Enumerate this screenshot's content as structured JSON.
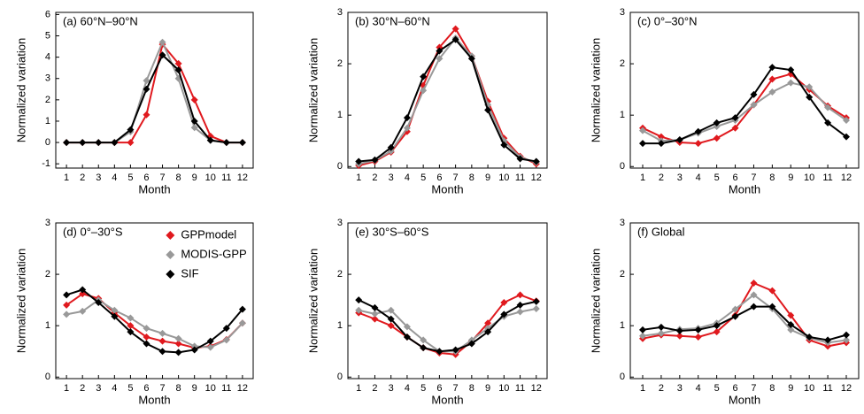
{
  "chart_data": [
    {
      "type": "line",
      "title": "(a) 60°N–90°N",
      "xlabel": "Month",
      "ylabel": "Normalized variation",
      "x": [
        1,
        2,
        3,
        4,
        5,
        6,
        7,
        8,
        9,
        10,
        11,
        12
      ],
      "xlim": [
        0.33,
        12.67
      ],
      "ylim": [
        -1.2,
        6.1
      ],
      "yticks": [
        -1,
        0,
        1,
        2,
        3,
        4,
        5,
        6
      ],
      "legend": false,
      "series": [
        {
          "name": "GPPmodel",
          "color": "#e0191e",
          "values": [
            0,
            0,
            0,
            0,
            0,
            1.3,
            4.6,
            3.7,
            2.0,
            0.3,
            0,
            0
          ]
        },
        {
          "name": "MODIS-GPP",
          "color": "#999999",
          "values": [
            0,
            0,
            0,
            0,
            0.5,
            2.9,
            4.7,
            3.0,
            0.7,
            0.1,
            0,
            0
          ]
        },
        {
          "name": "SIF",
          "color": "#000000",
          "values": [
            0,
            0,
            0,
            0,
            0.6,
            2.5,
            4.1,
            3.4,
            1.0,
            0.1,
            0,
            0
          ]
        }
      ]
    },
    {
      "type": "line",
      "title": "(b) 30°N–60°N",
      "xlabel": "Month",
      "ylabel": "Normalized variation",
      "x": [
        1,
        2,
        3,
        4,
        5,
        6,
        7,
        8,
        9,
        10,
        11,
        12
      ],
      "xlim": [
        0.33,
        12.67
      ],
      "ylim": [
        -0.03,
        3
      ],
      "yticks": [
        0,
        1,
        2,
        3
      ],
      "legend": false,
      "series": [
        {
          "name": "GPPmodel",
          "color": "#e0191e",
          "values": [
            0.02,
            0.1,
            0.28,
            0.68,
            1.58,
            2.32,
            2.68,
            2.15,
            1.27,
            0.55,
            0.2,
            0.05
          ]
        },
        {
          "name": "MODIS-GPP",
          "color": "#999999",
          "values": [
            0.05,
            0.12,
            0.3,
            0.75,
            1.48,
            2.1,
            2.5,
            2.15,
            1.2,
            0.5,
            0.18,
            0.08
          ]
        },
        {
          "name": "SIF",
          "color": "#000000",
          "values": [
            0.1,
            0.13,
            0.37,
            0.95,
            1.75,
            2.25,
            2.47,
            2.1,
            1.1,
            0.42,
            0.15,
            0.1
          ]
        }
      ]
    },
    {
      "type": "line",
      "title": "(c) 0°–30°N",
      "xlabel": "Month",
      "ylabel": "Normalized variation",
      "x": [
        1,
        2,
        3,
        4,
        5,
        6,
        7,
        8,
        9,
        10,
        11,
        12
      ],
      "xlim": [
        0.33,
        12.67
      ],
      "ylim": [
        -0.03,
        3
      ],
      "yticks": [
        0,
        1,
        2,
        3
      ],
      "legend": false,
      "series": [
        {
          "name": "GPPmodel",
          "color": "#e0191e",
          "values": [
            0.75,
            0.58,
            0.47,
            0.45,
            0.55,
            0.75,
            1.2,
            1.7,
            1.8,
            1.5,
            1.18,
            0.95
          ]
        },
        {
          "name": "MODIS-GPP",
          "color": "#999999",
          "values": [
            0.7,
            0.5,
            0.52,
            0.65,
            0.78,
            0.9,
            1.2,
            1.45,
            1.63,
            1.55,
            1.15,
            0.9
          ]
        },
        {
          "name": "SIF",
          "color": "#000000",
          "values": [
            0.45,
            0.45,
            0.52,
            0.68,
            0.85,
            0.95,
            1.4,
            1.93,
            1.88,
            1.35,
            0.85,
            0.58
          ]
        }
      ]
    },
    {
      "type": "line",
      "title": "(d) 0°–30°S",
      "xlabel": "Month",
      "ylabel": "Normalized variation",
      "x": [
        1,
        2,
        3,
        4,
        5,
        6,
        7,
        8,
        9,
        10,
        11,
        12
      ],
      "xlim": [
        0.33,
        12.67
      ],
      "ylim": [
        -0.03,
        3
      ],
      "yticks": [
        0,
        1,
        2,
        3
      ],
      "legend": "upper right",
      "series": [
        {
          "name": "GPPmodel",
          "color": "#e0191e",
          "values": [
            1.4,
            1.62,
            1.53,
            1.25,
            1.0,
            0.78,
            0.7,
            0.65,
            0.57,
            0.6,
            0.73,
            1.05
          ]
        },
        {
          "name": "MODIS-GPP",
          "color": "#999999",
          "values": [
            1.22,
            1.28,
            1.5,
            1.3,
            1.15,
            0.95,
            0.85,
            0.75,
            0.6,
            0.58,
            0.72,
            1.05
          ]
        },
        {
          "name": "SIF",
          "color": "#000000",
          "values": [
            1.6,
            1.7,
            1.45,
            1.18,
            0.88,
            0.65,
            0.5,
            0.48,
            0.53,
            0.7,
            0.95,
            1.32
          ]
        }
      ]
    },
    {
      "type": "line",
      "title": "(e) 30°S–60°S",
      "xlabel": "Month",
      "ylabel": "Normalized variation",
      "x": [
        1,
        2,
        3,
        4,
        5,
        6,
        7,
        8,
        9,
        10,
        11,
        12
      ],
      "xlim": [
        0.33,
        12.67
      ],
      "ylim": [
        -0.03,
        3
      ],
      "yticks": [
        0,
        1,
        2,
        3
      ],
      "legend": false,
      "series": [
        {
          "name": "GPPmodel",
          "color": "#e0191e",
          "values": [
            1.25,
            1.13,
            1.0,
            0.78,
            0.57,
            0.47,
            0.44,
            0.7,
            1.05,
            1.45,
            1.6,
            1.48
          ]
        },
        {
          "name": "MODIS-GPP",
          "color": "#999999",
          "values": [
            1.3,
            1.23,
            1.3,
            0.98,
            0.72,
            0.5,
            0.5,
            0.72,
            0.95,
            1.18,
            1.27,
            1.33
          ]
        },
        {
          "name": "SIF",
          "color": "#000000",
          "values": [
            1.5,
            1.35,
            1.13,
            0.78,
            0.57,
            0.5,
            0.53,
            0.65,
            0.88,
            1.22,
            1.4,
            1.47
          ]
        }
      ]
    },
    {
      "type": "line",
      "title": "(f) Global",
      "xlabel": "Month",
      "ylabel": "Normalized variation",
      "x": [
        1,
        2,
        3,
        4,
        5,
        6,
        7,
        8,
        9,
        10,
        11,
        12
      ],
      "xlim": [
        0.33,
        12.67
      ],
      "ylim": [
        -0.03,
        3
      ],
      "yticks": [
        0,
        1,
        2,
        3
      ],
      "legend": false,
      "series": [
        {
          "name": "GPPmodel",
          "color": "#e0191e",
          "values": [
            0.75,
            0.82,
            0.8,
            0.78,
            0.88,
            1.2,
            1.83,
            1.68,
            1.2,
            0.72,
            0.6,
            0.67
          ]
        },
        {
          "name": "MODIS-GPP",
          "color": "#999999",
          "values": [
            0.8,
            0.85,
            0.93,
            0.95,
            1.05,
            1.32,
            1.6,
            1.33,
            0.92,
            0.76,
            0.67,
            0.72
          ]
        },
        {
          "name": "SIF",
          "color": "#000000",
          "values": [
            0.92,
            0.97,
            0.9,
            0.92,
            1.0,
            1.18,
            1.37,
            1.37,
            1.02,
            0.78,
            0.72,
            0.82
          ]
        }
      ]
    }
  ]
}
